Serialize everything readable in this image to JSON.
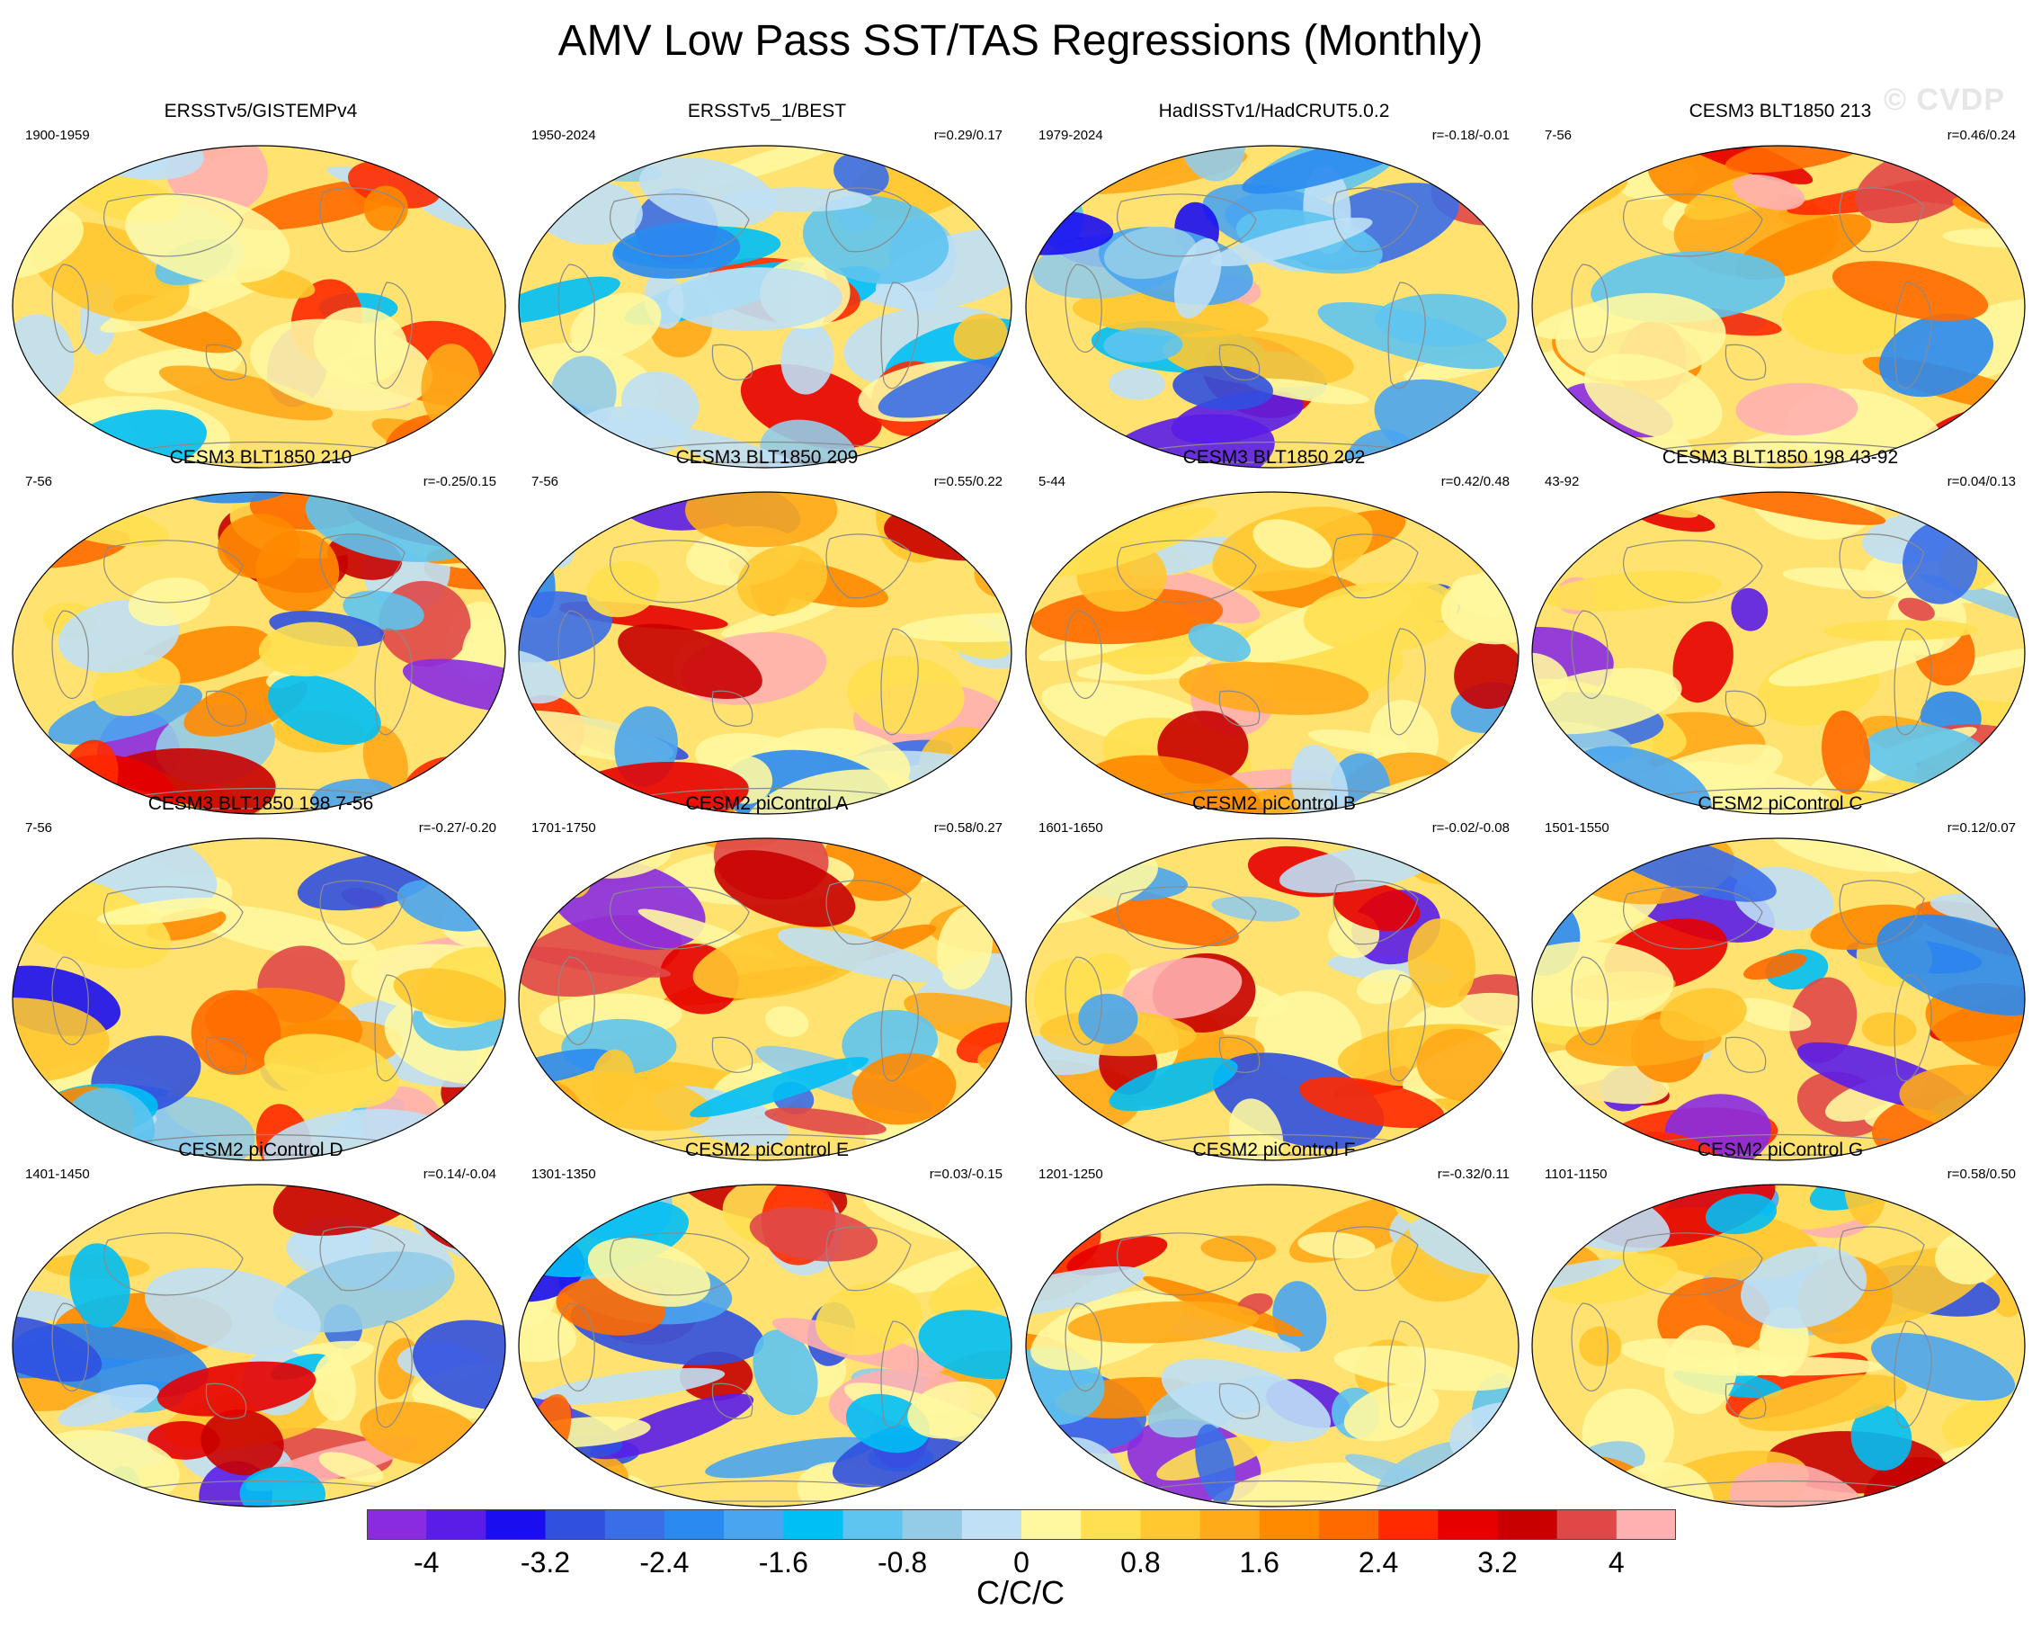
{
  "title": "AMV Low Pass SST/TAS Regressions (Monthly)",
  "watermark": "© CVDP",
  "chart_data": {
    "type": "heatmap",
    "title": "AMV Low Pass SST/TAS Regressions (Monthly)",
    "projection": "robinson-like global maps",
    "panels": [
      {
        "name": "ERSSTv5/GISTEMPv4",
        "period": "1900-1959",
        "r": ""
      },
      {
        "name": "ERSSTv5_1/BEST",
        "period": "1950-2024",
        "r": "r=0.29/0.17"
      },
      {
        "name": "HadISSTv1/HadCRUT5.0.2",
        "period": "1979-2024",
        "r": "r=-0.18/-0.01"
      },
      {
        "name": "CESM3 BLT1850 213",
        "period": "7-56",
        "r": "r=0.46/0.24"
      },
      {
        "name": "CESM3 BLT1850 210",
        "period": "7-56",
        "r": "r=-0.25/0.15"
      },
      {
        "name": "CESM3 BLT1850 209",
        "period": "7-56",
        "r": "r=0.55/0.22"
      },
      {
        "name": "CESM3 BLT1850 202",
        "period": "5-44",
        "r": "r=0.42/0.48"
      },
      {
        "name": "CESM3 BLT1850 198 43-92",
        "period": "43-92",
        "r": "r=0.04/0.13"
      },
      {
        "name": "CESM3 BLT1850 198 7-56",
        "period": "7-56",
        "r": "r=-0.27/-0.20"
      },
      {
        "name": "CESM2 piControl A",
        "period": "1701-1750",
        "r": "r=0.58/0.27"
      },
      {
        "name": "CESM2 piControl B",
        "period": "1601-1650",
        "r": "r=-0.02/-0.08"
      },
      {
        "name": "CESM2 piControl C",
        "period": "1501-1550",
        "r": "r=0.12/0.07"
      },
      {
        "name": "CESM2 piControl D",
        "period": "1401-1450",
        "r": "r=0.14/-0.04"
      },
      {
        "name": "CESM2 piControl E",
        "period": "1301-1350",
        "r": "r=0.03/-0.15"
      },
      {
        "name": "CESM2 piControl F",
        "period": "1201-1250",
        "r": "r=-0.32/0.11"
      },
      {
        "name": "CESM2 piControl G",
        "period": "1101-1150",
        "r": "r=0.58/0.50"
      }
    ],
    "colorbar": {
      "unit": "C/C/C",
      "tick_labels": [
        "-4",
        "-3.2",
        "-2.4",
        "-1.6",
        "-0.8",
        "0",
        "0.8",
        "1.6",
        "2.4",
        "3.2",
        "4"
      ],
      "range": [
        -4.4,
        4.4
      ],
      "colors": [
        "#8a2be2",
        "#5a1de8",
        "#1a0ef0",
        "#3050e0",
        "#3a6ee8",
        "#2b8af0",
        "#4aa5f0",
        "#00bff5",
        "#5ec4f0",
        "#94cce8",
        "#bfe0f5",
        "#fff8a0",
        "#ffe050",
        "#ffc830",
        "#ffaa18",
        "#ff8a00",
        "#ff6a00",
        "#ff2a00",
        "#e60000",
        "#c80000",
        "#e04848",
        "#ffb0b0"
      ]
    }
  }
}
